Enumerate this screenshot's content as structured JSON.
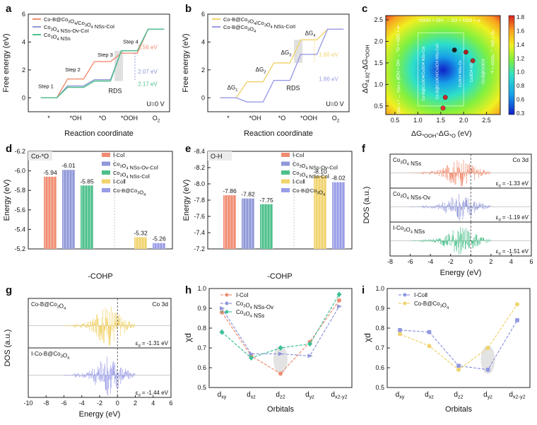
{
  "colors": {
    "coi": "#f08c70",
    "ov": "#8f97d8",
    "nss": "#4cc08b",
    "coii": "#f1d36d",
    "cob": "#9a9ce8",
    "boxbg": "#ececec"
  },
  "panels": {
    "a": {
      "label": "a"
    },
    "b": {
      "label": "b"
    },
    "c": {
      "label": "c"
    },
    "d": {
      "label": "d"
    },
    "e": {
      "label": "e"
    },
    "f": {
      "label": "f"
    },
    "g": {
      "label": "g"
    },
    "h": {
      "label": "h"
    },
    "i": {
      "label": "i"
    }
  },
  "chart_data": [
    {
      "id": "a",
      "type": "line",
      "title": "",
      "xlabel": "Reaction coordinate",
      "ylabel": "Free energy (eV)",
      "categories": [
        "*",
        "*OH",
        "*O",
        "*OOH",
        "O2"
      ],
      "ylim": [
        -1,
        6
      ],
      "yticks": [
        "0",
        "2",
        "4",
        "6"
      ],
      "series": [
        {
          "name": "Co-B@Co3O4/Co3O4 NSs-CoI",
          "values": [
            0,
            1.35,
            2.6,
            3.2,
            4.92
          ]
        },
        {
          "name": "Co3O4 NSs-Ov-CoI",
          "values": [
            0,
            0.85,
            1.3,
            3.37,
            4.92
          ]
        },
        {
          "name": "Co3O4 NSs",
          "values": [
            0,
            0.75,
            1.2,
            3.37,
            4.92
          ]
        }
      ],
      "steps": [
        "Step 1",
        "Step 2",
        "Step 3",
        "Step 4"
      ],
      "annotations": [
        "1.56 eV",
        "2.07 eV",
        "2.17 eV",
        "RDS",
        "U=0 V"
      ]
    },
    {
      "id": "b",
      "type": "line",
      "title": "",
      "xlabel": "Reaction coordinate",
      "ylabel": "Free energy (eV)",
      "categories": [
        "*",
        "*OH",
        "*O",
        "*OOH",
        "O2"
      ],
      "ylim": [
        -1,
        6
      ],
      "yticks": [
        "0",
        "2",
        "4",
        "6"
      ],
      "series": [
        {
          "name": "Co-B@Co3O4/Co3O4 NSs-CoII",
          "values": [
            0,
            1.15,
            2.5,
            4.16,
            4.92
          ]
        },
        {
          "name": "Co-B@Co3O4",
          "values": [
            0,
            -0.3,
            1.25,
            3.11,
            4.92
          ]
        }
      ],
      "steps": [
        "ΔG1",
        "ΔG2",
        "ΔG3",
        "ΔG4"
      ],
      "annotations": [
        "1.66 eV",
        "1.86 eV",
        "RDS",
        "U=0 V"
      ]
    },
    {
      "id": "c",
      "type": "heatmap",
      "xlabel": "ΔG*OOH-ΔG*O (eV)",
      "ylabel": "ΔG4.92-ΔG*OOH",
      "xlim": [
        0.3,
        2.8
      ],
      "ylim": [
        0.3,
        2.6
      ],
      "xticks": [
        "0.5",
        "1.0",
        "1.5",
        "2.0",
        "2.5"
      ],
      "yticks": [
        "0.5",
        "1.0",
        "1.5",
        "2.0",
        "2.5"
      ],
      "colorbar_ticks": [
        "1.8",
        "1.6",
        "1.4",
        "1.2",
        "1.0",
        "0.8",
        "0.6",
        "0.3"
      ],
      "regions": [
        "*OOH + OH- → O2 + H2O + e-",
        "*OH + OH- → *O + H2O + e-",
        "*O + OH- → *OOH + e-",
        "OH- + * → *OH + e-",
        "Co-B@Co3O4/Co3O4 NSs-CoI",
        "Co-B@Co3O4/Co3O4 NSs-CoII",
        "Co3O4 NSs-Ov",
        "Co3O4 NSs",
        "Co-B@Co3O4"
      ],
      "points": [
        {
          "x": 1.55,
          "y": 0.45
        },
        {
          "x": 1.6,
          "y": 0.7
        },
        {
          "x": 1.8,
          "y": 1.8
        },
        {
          "x": 2.05,
          "y": 1.75
        },
        {
          "x": 2.2,
          "y": 1.55
        }
      ]
    },
    {
      "id": "d",
      "type": "bar",
      "xlabel": "-COHP",
      "ylabel": "Energy (eV)",
      "box_label": "Co-*O",
      "ylim": [
        -6.2,
        -5.2
      ],
      "yticks": [
        "-6.2",
        "-6.0",
        "-5.8",
        "-5.6",
        "-5.4",
        "-5.2"
      ],
      "categories": [
        "Ⅰ-CoⅠ",
        "Co3O4 NSs-Ov-CoⅠ",
        "Co3O4 NSs-CoⅠ",
        "Ⅰ-CoⅡ",
        "Co-B@Co3O4"
      ],
      "values": [
        -5.94,
        -6.01,
        -5.85,
        -5.32,
        -5.26
      ],
      "value_labels": [
        "-5.94",
        "-6.01",
        "-5.85",
        "-5.32",
        "-5.26"
      ]
    },
    {
      "id": "e",
      "type": "bar",
      "xlabel": "-COHP",
      "ylabel": "Energy (eV)",
      "box_label": "O-H",
      "ylim": [
        -8.4,
        -7.2
      ],
      "yticks": [
        "-8.4",
        "-8.2",
        "-8.0",
        "-7.8",
        "-7.6",
        "-7.4",
        "-7.2"
      ],
      "categories": [
        "Ⅰ-CoⅠ",
        "Co3O4 NSs-Ov-CoⅠ",
        "Co3O4 NSs-CoⅠ",
        "Ⅰ-CoⅡ",
        "Co-B@Co3O4"
      ],
      "values": [
        -7.86,
        -7.82,
        -7.75,
        -8.1,
        -8.02
      ],
      "value_labels": [
        "-7.86",
        "-7.82",
        "-7.75",
        "-8.10",
        "-8.02"
      ]
    },
    {
      "id": "f",
      "type": "line",
      "xlabel": "Energy (eV)",
      "ylabel": "DOS (a.u.)",
      "title": "Co 3d",
      "xlim": [
        -8,
        6
      ],
      "xticks": [
        "-8",
        "-6",
        "-4",
        "-2",
        "0",
        "2",
        "4",
        "6"
      ],
      "series": [
        {
          "name": "Co3O4 NSs",
          "d_band_center": "εd = -1.33 eV"
        },
        {
          "name": "Co3O4 NSs-Ov",
          "d_band_center": "εd = -1.19 eV"
        },
        {
          "name": "Ⅰ-Co3O4 NSs",
          "d_band_center": "εd = -1.51 eV"
        }
      ]
    },
    {
      "id": "g",
      "type": "line",
      "xlabel": "Energy (eV)",
      "ylabel": "DOS (a.u.)",
      "title": "Co 3d",
      "xlim": [
        -10,
        6
      ],
      "xticks": [
        "-10",
        "-8",
        "-6",
        "-4",
        "-2",
        "0",
        "2",
        "4",
        "6"
      ],
      "series": [
        {
          "name": "Co-B@Co3O4",
          "d_band_center": "εd = -1.31 eV"
        },
        {
          "name": "Ⅰ-Co-B@Co3O4",
          "d_band_center": "εd = -1.44 eV"
        }
      ]
    },
    {
      "id": "h",
      "type": "line",
      "xlabel": "Orbitals",
      "ylabel": "χd",
      "categories": [
        "dxy",
        "dxz",
        "dz2",
        "dyz",
        "dx2-y2"
      ],
      "ylim": [
        0.5,
        1.0
      ],
      "yticks": [
        "0.5",
        "0.6",
        "0.7",
        "0.8",
        "0.9",
        "1.0"
      ],
      "series": [
        {
          "name": "Ⅰ-CoⅠ",
          "values": [
            0.88,
            0.66,
            0.57,
            0.73,
            0.94
          ]
        },
        {
          "name": "Co3O4 NSs-Ov",
          "values": [
            0.9,
            0.67,
            0.67,
            0.66,
            0.91
          ]
        },
        {
          "name": "Co3O4 NSs",
          "values": [
            0.78,
            0.65,
            0.7,
            0.72,
            0.97
          ]
        }
      ]
    },
    {
      "id": "i",
      "type": "line",
      "xlabel": "Orbitals",
      "ylabel": "χd",
      "categories": [
        "dxy",
        "dxz",
        "dz2",
        "dyz",
        "dx2-y2"
      ],
      "ylim": [
        0.5,
        1.0
      ],
      "yticks": [
        "0.5",
        "0.6",
        "0.7",
        "0.8",
        "0.9",
        "1.0"
      ],
      "series": [
        {
          "name": "Ⅰ-CoⅡ",
          "values": [
            0.79,
            0.78,
            0.61,
            0.59,
            0.84
          ]
        },
        {
          "name": "Co-B@Co3O4",
          "values": [
            0.77,
            0.71,
            0.59,
            0.7,
            0.92
          ]
        }
      ]
    }
  ]
}
